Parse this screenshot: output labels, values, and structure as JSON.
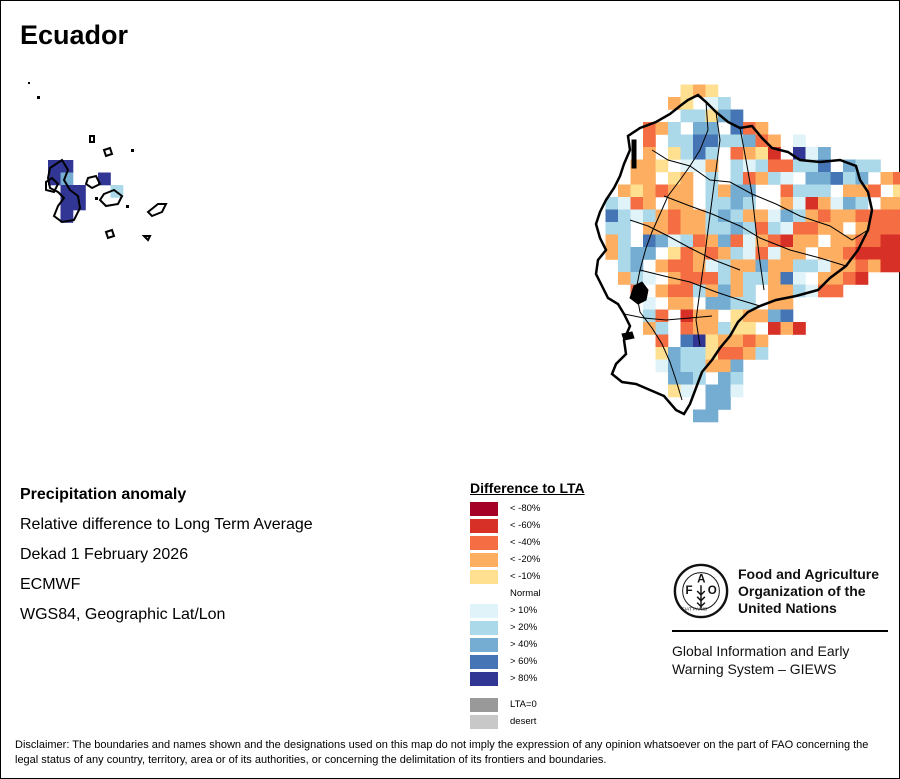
{
  "title": "Ecuador",
  "info": {
    "heading": "Precipitation anomaly",
    "line1": "Relative difference to Long Term Average",
    "line2": "Dekad 1 February 2026",
    "line3": "ECMWF",
    "line4": "WGS84, Geographic Lat/Lon"
  },
  "legend": {
    "title": "Difference to LTA",
    "items": [
      {
        "label": "< -80%",
        "color": "#a50026",
        "code": "a"
      },
      {
        "label": "< -60%",
        "color": "#d73027",
        "code": "b"
      },
      {
        "label": "< -40%",
        "color": "#f46d43",
        "code": "c"
      },
      {
        "label": "< -20%",
        "color": "#fdae61",
        "code": "d"
      },
      {
        "label": "< -10%",
        "color": "#fee090",
        "code": "e"
      },
      {
        "label": "Normal",
        "color": "#ffffff",
        "code": "."
      },
      {
        "label": "> 10%",
        "color": "#e0f3f8",
        "code": "f"
      },
      {
        "label": "> 20%",
        "color": "#abd9e9",
        "code": "g"
      },
      {
        "label": "> 40%",
        "color": "#74add1",
        "code": "h"
      },
      {
        "label": "> 60%",
        "color": "#4575b4",
        "code": "i"
      },
      {
        "label": "> 80%",
        "color": "#313695",
        "code": "j"
      }
    ],
    "extra": [
      {
        "label": "LTA=0",
        "color": "#999999"
      },
      {
        "label": "desert",
        "color": "#c8c8c8"
      }
    ]
  },
  "map": {
    "mainland_grid": [
      "........ede.....................",
      ".......de.fg....................",
      "........ggehi....................",
      ".....cdg.hh.icd.................",
      ".....c.ggiigghcd.f..............",
      ".....d.egig.cdeb.jfh............",
      "....dde.ffd.gfgccggi.hgg...d....",
      "....dd.ed.g.gcdgf.hhigh.dc......",
      "...dedcdd.gdhh..cggg.ddc.eedd...",
      "..gfcd.dd.gghg..dfbdfhg.ddcd.d..",
      "..igfgdcddghgddfhgdcddccccdceee.",
      "..gg.ddcddgghgcgfccdd.dcccccccc.",
      "..dg.ihfgcdhcfdcbdd.ddccbbbbcc..",
      "..dghh.ecdcdgfcfdd.ddcbbbbbc....",
      "...gh.dccdfgddhddggfddcdbbb.....",
      "...dgf.dcccgdggdif.ddcb.........",
      "....c.dccgdhdg.ddgfcc...........",
      ".....f.dd.hhgg.dd...............",
      ".....gc.bdd.eddhi...............",
      ".....dg.cddgee.bdb..............",
      "......c.ijeddcd.................",
      "......ehggeccdg.................",
      "......fhggddh...................",
      ".......hhg.hg...................",
      ".......ef.hhf...................",
      "..........hh....................",
      ".........hh....................."
    ],
    "galapagos_grid": [
      "jj.....",
      "jh..j..",
      ".jj..g.",
      ".jj....",
      ".j....."
    ]
  },
  "fao": {
    "line1": "Food and Agriculture",
    "line2": "Organization of the",
    "line3": "United Nations",
    "giews1": "Global Information and Early",
    "giews2": "Warning System – GIEWS",
    "logo_letters": [
      "F",
      "A",
      "O"
    ],
    "motto": "FIAT PANIS"
  },
  "disclaimer": "Disclaimer: The boundaries and names shown and the designations used on this map do not imply the expression of any opinion whatsoever on the part of FAO concerning the legal status of any country, territory, area or of its authorities, or concerning the delimitation of its frontiers and boundaries."
}
